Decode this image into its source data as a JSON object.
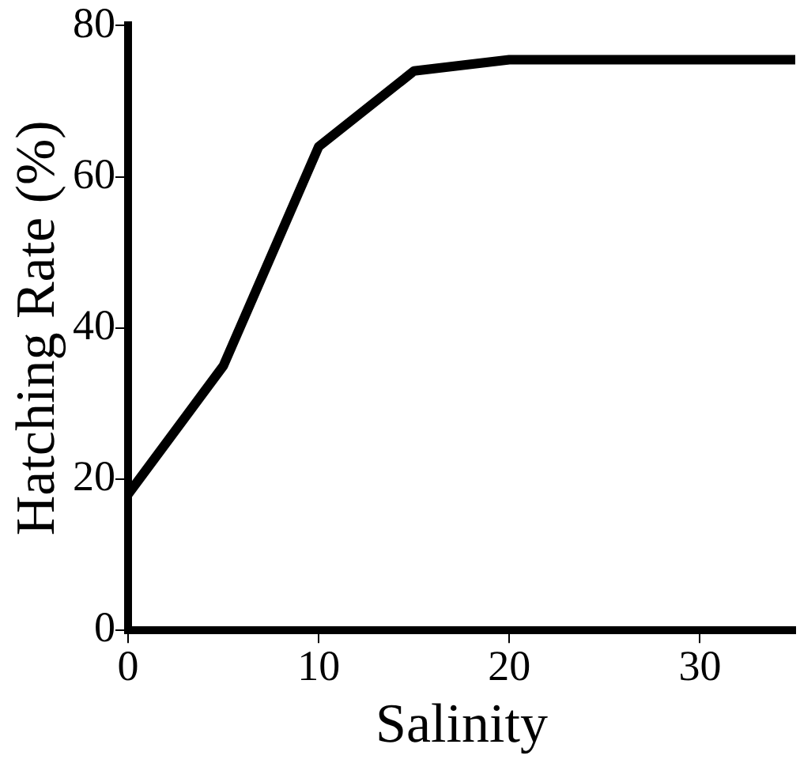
{
  "chart_data": {
    "type": "line",
    "xlabel": "Salinity",
    "ylabel": "Hatching Rate (%)",
    "x": [
      0,
      5,
      10,
      15,
      20,
      35
    ],
    "series": [
      {
        "color": "#000000",
        "values": [
          18,
          35,
          64,
          74,
          75.5,
          75.5
        ]
      }
    ],
    "xlim": [
      0,
      35
    ],
    "xticks": [
      0,
      10,
      20,
      30
    ],
    "ylim": [
      0,
      80
    ],
    "yticks": [
      0,
      20,
      40,
      60,
      80
    ],
    "grid": false,
    "legend": false,
    "marker": "none",
    "line_style": "solid"
  }
}
